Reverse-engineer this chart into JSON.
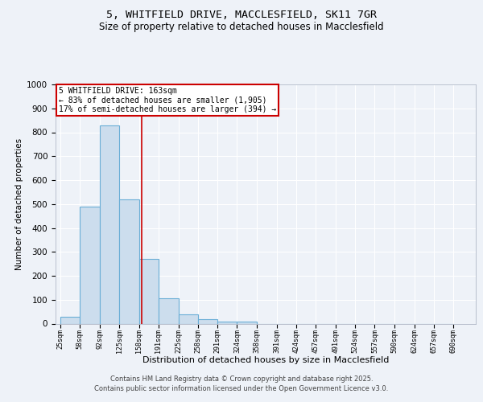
{
  "title_line1": "5, WHITFIELD DRIVE, MACCLESFIELD, SK11 7GR",
  "title_line2": "Size of property relative to detached houses in Macclesfield",
  "xlabel": "Distribution of detached houses by size in Macclesfield",
  "ylabel": "Number of detached properties",
  "bin_edges": [
    25,
    58,
    92,
    125,
    158,
    191,
    225,
    258,
    291,
    324,
    358,
    391,
    424,
    457,
    491,
    524,
    557,
    590,
    624,
    657,
    690
  ],
  "bar_heights": [
    30,
    490,
    830,
    520,
    270,
    105,
    38,
    20,
    10,
    10,
    0,
    0,
    0,
    0,
    0,
    0,
    0,
    0,
    0,
    0
  ],
  "bar_color": "#ccdded",
  "bar_edge_color": "#6aaed6",
  "property_line_x": 163,
  "property_line_color": "#cc0000",
  "annotation_line1": "5 WHITFIELD DRIVE: 163sqm",
  "annotation_line2": "← 83% of detached houses are smaller (1,905)",
  "annotation_line3": "17% of semi-detached houses are larger (394) →",
  "annotation_box_color": "#cc0000",
  "ylim": [
    0,
    1000
  ],
  "yticks": [
    0,
    100,
    200,
    300,
    400,
    500,
    600,
    700,
    800,
    900,
    1000
  ],
  "footer_line1": "Contains HM Land Registry data © Crown copyright and database right 2025.",
  "footer_line2": "Contains public sector information licensed under the Open Government Licence v3.0.",
  "background_color": "#eef2f8",
  "plot_bg_color": "#eef2f8",
  "grid_color": "#ffffff"
}
